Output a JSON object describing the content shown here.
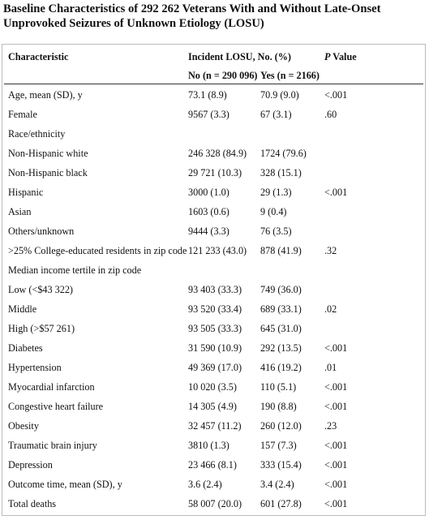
{
  "title": "Baseline Characteristics of 292 262 Veterans With and Without Late-Onset Unprovoked Seizures of Unknown Etiology (LOSU)",
  "table": {
    "header": {
      "characteristic": "Characteristic",
      "group": "Incident LOSU, No. (%)",
      "p": "P Value",
      "no": "No (n = 290 096)",
      "yes": "Yes (n = 2166)"
    },
    "rows": [
      {
        "label": "Age, mean (SD), y",
        "no": "73.1 (8.9)",
        "yes": "70.9 (9.0)",
        "p": "<.001"
      },
      {
        "label": "Female",
        "no": "9567 (3.3)",
        "yes": "67 (3.1)",
        "p": ".60"
      },
      {
        "label": "Race/ethnicity"
      },
      {
        "label": "Non-Hispanic white",
        "no": "246 328 (84.9)",
        "yes": "1724 (79.6)"
      },
      {
        "label": "Non-Hispanic black",
        "no": "29 721 (10.3)",
        "yes": "328 (15.1)"
      },
      {
        "label": "Hispanic",
        "no": "3000 (1.0)",
        "yes": "29 (1.3)",
        "p": "<.001"
      },
      {
        "label": "Asian",
        "no": "1603 (0.6)",
        "yes": "9 (0.4)"
      },
      {
        "label": "Others/unknown",
        "no": "9444 (3.3)",
        "yes": "76 (3.5)"
      },
      {
        "label": ">25% College-educated residents in zip code",
        "no": "121 233 (43.0)",
        "yes": "878 (41.9)",
        "p": ".32"
      },
      {
        "label": "Median income tertile in zip code"
      },
      {
        "label": "Low (<$43 322)",
        "no": "93 403 (33.3)",
        "yes": "749 (36.0)"
      },
      {
        "label": "Middle",
        "no": "93 520 (33.4)",
        "yes": "689 (33.1)",
        "p": ".02"
      },
      {
        "label": "High (>$57 261)",
        "no": "93 505 (33.3)",
        "yes": "645 (31.0)"
      },
      {
        "label": "Diabetes",
        "no": "31 590 (10.9)",
        "yes": "292 (13.5)",
        "p": "<.001"
      },
      {
        "label": "Hypertension",
        "no": "49 369 (17.0)",
        "yes": "416 (19.2)",
        "p": ".01"
      },
      {
        "label": "Myocardial infarction",
        "no": "10 020 (3.5)",
        "yes": "110 (5.1)",
        "p": "<.001"
      },
      {
        "label": "Congestive heart failure",
        "no": "14 305 (4.9)",
        "yes": "190 (8.8)",
        "p": "<.001"
      },
      {
        "label": "Obesity",
        "no": "32 457 (11.2)",
        "yes": "260 (12.0)",
        "p": ".23"
      },
      {
        "label": "Traumatic brain injury",
        "no": "3810 (1.3)",
        "yes": "157 (7.3)",
        "p": "<.001"
      },
      {
        "label": "Depression",
        "no": "23 466 (8.1)",
        "yes": "333 (15.4)",
        "p": "<.001"
      },
      {
        "label": "Outcome time, mean (SD), y",
        "no": "3.6 (2.4)",
        "yes": "3.4 (2.4)",
        "p": "<.001"
      },
      {
        "label": "Total deaths",
        "no": "58 007 (20.0)",
        "yes": "601 (27.8)",
        "p": "<.001"
      }
    ]
  }
}
